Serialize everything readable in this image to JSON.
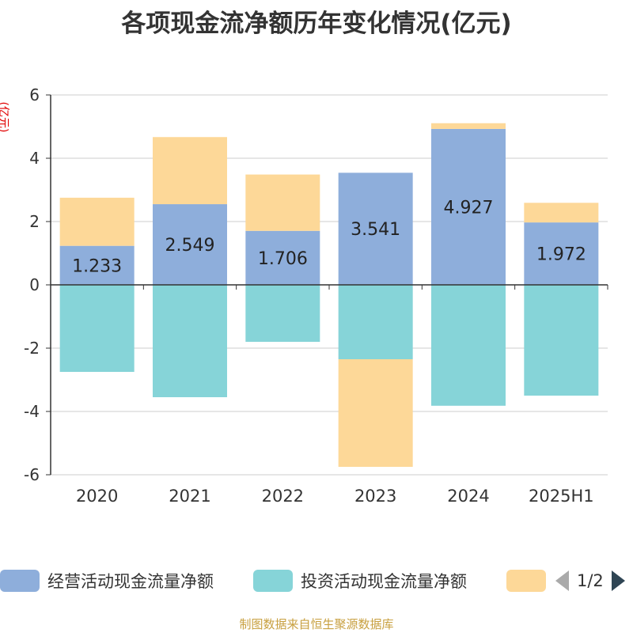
{
  "title": "各项现金流净额历年变化情况(亿元)",
  "unit_label": "(亿元)",
  "source": "制图数据来自恒生聚源数据库",
  "legend": {
    "items": [
      {
        "label": "经营活动现金流量净额",
        "color": "#8eaedb"
      },
      {
        "label": "投资活动现金流量净额",
        "color": "#86d4d8"
      },
      {
        "label": "",
        "color": "#fdd898"
      }
    ],
    "page_indicator": "1/2"
  },
  "chart_data": {
    "type": "bar",
    "stacked": true,
    "categories": [
      "2020",
      "2021",
      "2022",
      "2023",
      "2024",
      "2025H1"
    ],
    "ylim": [
      -6,
      6
    ],
    "yticks": [
      6,
      4,
      2,
      0,
      -2,
      -4,
      -6
    ],
    "ylabel": "(亿元)",
    "grid": true,
    "legend_position": "bottom",
    "series": [
      {
        "name": "经营活动现金流量净额",
        "color": "#8eaedb",
        "values": [
          1.233,
          2.549,
          1.706,
          3.541,
          4.927,
          1.972
        ],
        "show_labels": true
      },
      {
        "name": "投资活动现金流量净额",
        "color": "#86d4d8",
        "values": [
          -2.75,
          -3.55,
          -1.8,
          -2.35,
          -3.82,
          -3.5
        ],
        "show_labels": false
      },
      {
        "color": "#fdd898",
        "values": [
          1.52,
          2.12,
          1.78,
          -3.4,
          0.18,
          0.62
        ],
        "show_labels": false
      }
    ]
  }
}
